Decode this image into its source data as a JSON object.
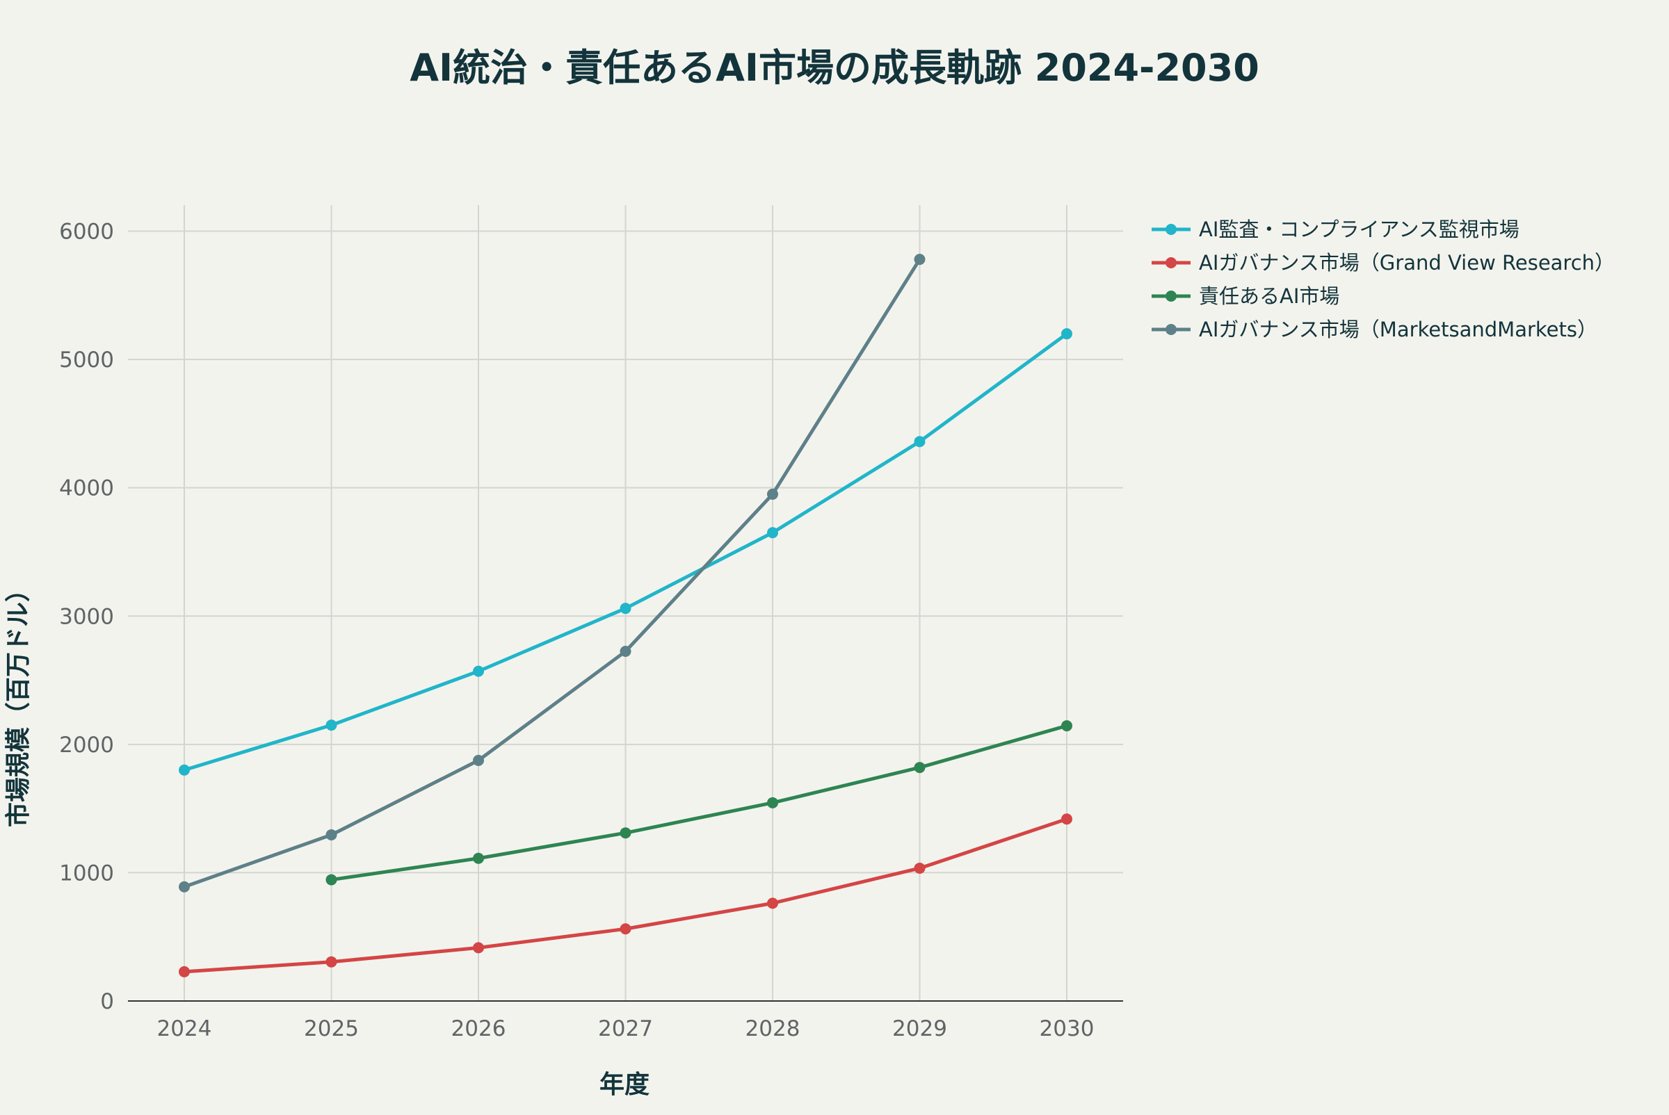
{
  "chart_data": {
    "type": "line",
    "title": "AI統治・責任あるAI市場の成長軌跡 2024-2030",
    "xlabel": "年度",
    "ylabel": "市場規模（百万ドル）",
    "x": [
      2024,
      2025,
      2026,
      2027,
      2028,
      2029,
      2030
    ],
    "x_tick_labels": [
      "2024",
      "2025",
      "2026",
      "2027",
      "2028",
      "2029",
      "2030"
    ],
    "ylim": [
      0,
      6200
    ],
    "y_ticks": [
      0,
      1000,
      2000,
      3000,
      4000,
      5000,
      6000
    ],
    "y_tick_labels": [
      "0",
      "1000",
      "2000",
      "3000",
      "4000",
      "5000",
      "6000"
    ],
    "grid": true,
    "legend_position": "top-right",
    "series": [
      {
        "name": "AI監査・コンプライアンス監視市場",
        "color": "#21b5c9",
        "values": [
          1800,
          2150,
          2570,
          3060,
          3650,
          4360,
          5200
        ]
      },
      {
        "name": "AIガバナンス市場（Grand View Research）",
        "color": "#d44545",
        "values": [
          228,
          305,
          415,
          562,
          762,
          1035,
          1418
        ]
      },
      {
        "name": "責任あるAI市場",
        "color": "#2e8552",
        "values": [
          null,
          945,
          1112,
          1310,
          1545,
          1820,
          2145
        ]
      },
      {
        "name": "AIガバナンス市場（MarketsandMarkets）",
        "color": "#5e8088",
        "values": [
          890,
          1295,
          1875,
          2725,
          3950,
          5780,
          null
        ]
      }
    ]
  }
}
